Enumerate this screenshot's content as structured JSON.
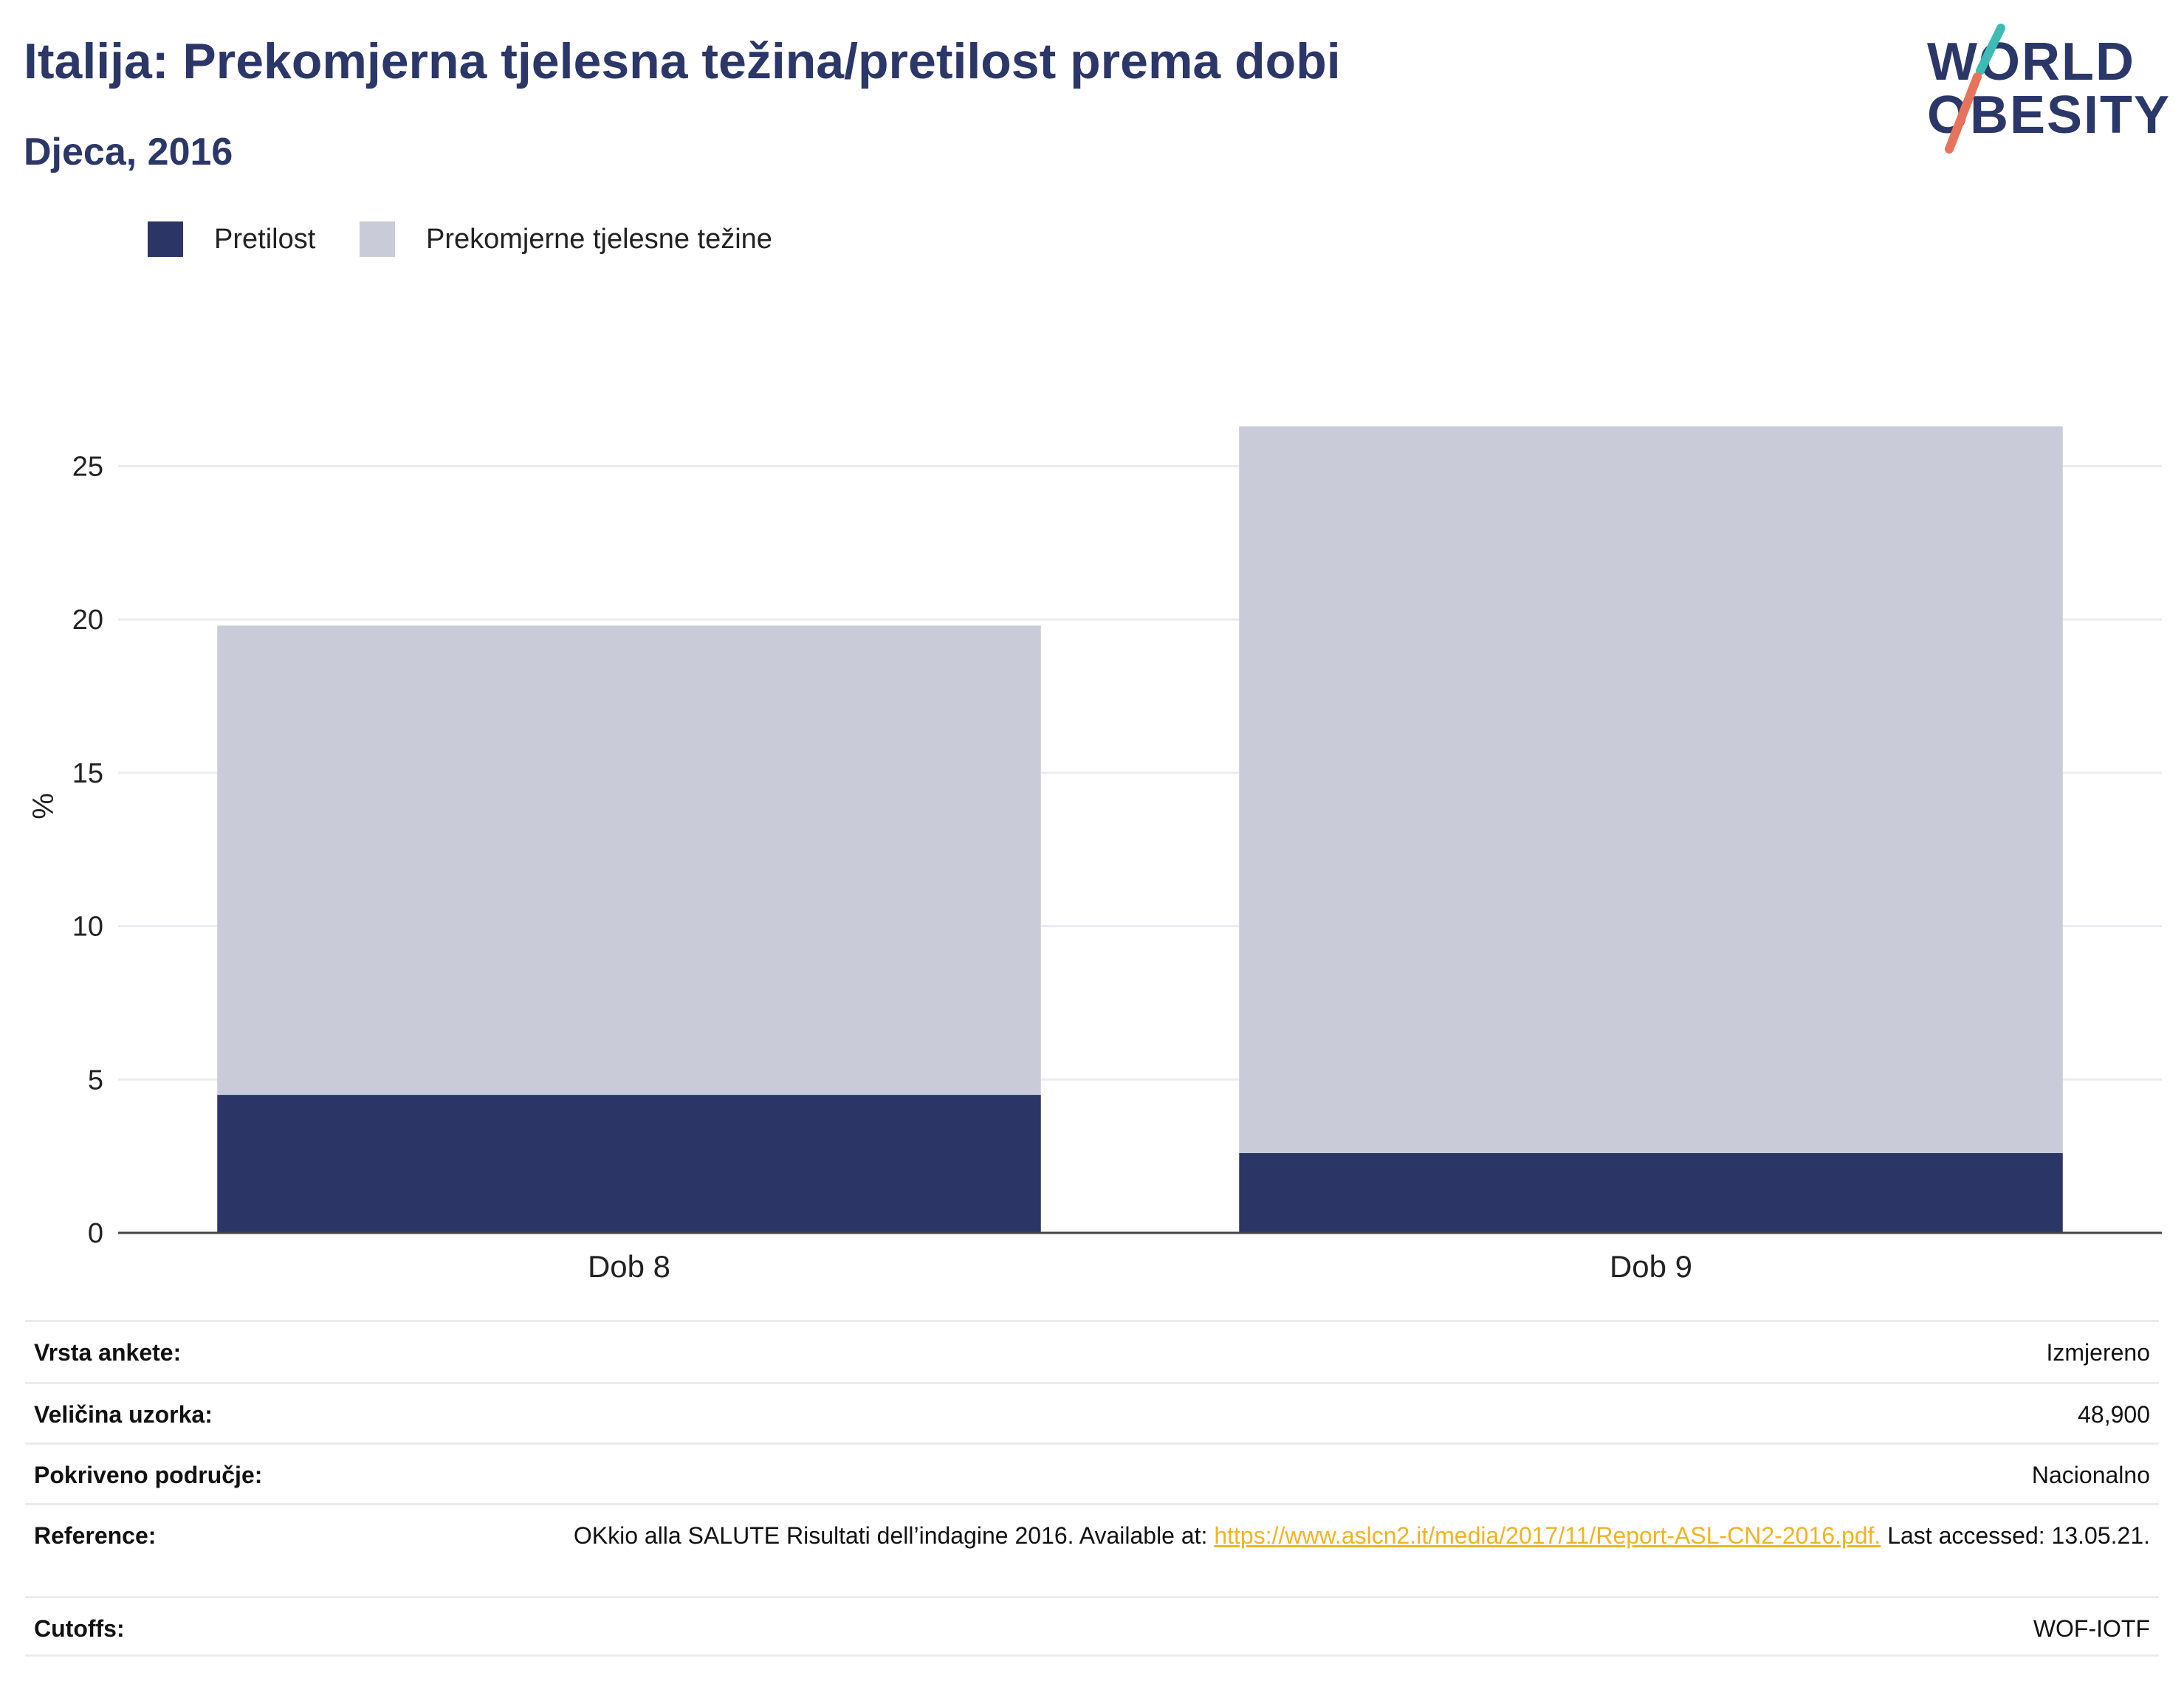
{
  "header": {
    "title": "Italija: Prekomjerna tjelesna težina/pretilost prema dobi",
    "subtitle": "Djeca, 2016"
  },
  "logo": {
    "line1": "WORLD",
    "line2": "OBESITY",
    "colors": {
      "text": "#2b3768",
      "slash_top": "#3dbcb6",
      "slash_bottom": "#e8735c"
    }
  },
  "chart_data": {
    "type": "bar",
    "stacked": true,
    "categories": [
      "Dob 8",
      "Dob 9"
    ],
    "series": [
      {
        "name": "Pretilost",
        "color": "#2b3666",
        "values": [
          4.5,
          2.6
        ]
      },
      {
        "name": "Prekomjerne tjelesne težine",
        "color": "#c9ccd8",
        "values": [
          15.3,
          23.7
        ]
      }
    ],
    "ylabel": "%",
    "xlabel": "",
    "ylim": [
      0,
      27.2
    ],
    "yticks": [
      0,
      5,
      10,
      15,
      20,
      25
    ],
    "grid": true,
    "legend": "top-left"
  },
  "info": {
    "rows": [
      {
        "label": "Vrsta ankete:",
        "value": "Izmjereno"
      },
      {
        "label": "Veličina uzorka:",
        "value": "48,900"
      },
      {
        "label": "Pokriveno područje:",
        "value": "Nacionalno"
      },
      {
        "label": "Reference:",
        "value_prefix": "OKkio alla SALUTE Risultati dell’indagine 2016. Available at: ",
        "link": "https://www.aslcn2.it/media/2017/11/Report-ASL-CN2-2016.pdf.",
        "value_suffix": " Last accessed: 13.05.21."
      },
      {
        "label": "Cutoffs:",
        "value": "WOF-IOTF"
      }
    ]
  }
}
